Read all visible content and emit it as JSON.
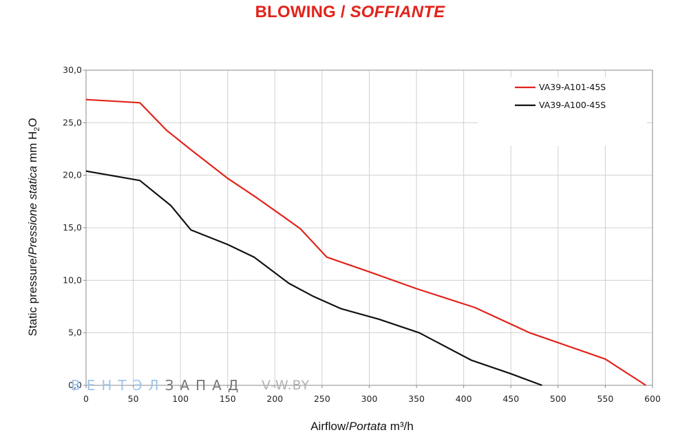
{
  "title": {
    "main": "BLOWING",
    "separator": " / ",
    "italic": "SOFFIANTE",
    "color": "#e2231a"
  },
  "watermark": {
    "left_part1": "ВЕНТЭЛ",
    "left_part2": "ЗАПАД",
    "right": "V-W.BY",
    "color1": "#9fc4e8",
    "color2": "#777777",
    "color3": "#b0b0b0"
  },
  "chart_data": {
    "type": "line",
    "xlabel": {
      "plain": "Airflow",
      "slash": "/",
      "italic": "Portata",
      "unit": "m³/h"
    },
    "ylabel": {
      "plain": "Static pressure",
      "slash": "/",
      "italic": "Pressione statica",
      "unit": "mm H",
      "sub": "2",
      "unit_end": "O"
    },
    "xlim": [
      0,
      600
    ],
    "ylim": [
      0,
      30
    ],
    "x_ticks": [
      0,
      50,
      100,
      150,
      200,
      250,
      300,
      350,
      400,
      450,
      500,
      550,
      600
    ],
    "x_tick_labels": [
      "0",
      "50",
      "100",
      "150",
      "200",
      "250",
      "300",
      "350",
      "400",
      "450",
      "500",
      "550",
      "600"
    ],
    "y_ticks": [
      0,
      5,
      10,
      15,
      20,
      25,
      30
    ],
    "y_tick_labels": [
      "0,0",
      "5,0",
      "10,0",
      "15,0",
      "20,0",
      "25,0",
      "30,0"
    ],
    "grid": true,
    "legend_position": "top-right",
    "series": [
      {
        "name": "VA39-A101-45S",
        "color": "#e2231a",
        "x": [
          0,
          57,
          85,
          110,
          150,
          180,
          210,
          227,
          255,
          300,
          350,
          412,
          470,
          550,
          593
        ],
        "y": [
          27.2,
          26.9,
          24.3,
          22.5,
          19.7,
          17.9,
          16.0,
          14.9,
          12.2,
          10.8,
          9.2,
          7.4,
          5.0,
          2.5,
          0
        ]
      },
      {
        "name": "VA39-A100-45S",
        "color": "#111111",
        "x": [
          0,
          57,
          90,
          111,
          150,
          178,
          215,
          240,
          270,
          310,
          353,
          408,
          450,
          483
        ],
        "y": [
          20.4,
          19.5,
          17.1,
          14.8,
          13.4,
          12.2,
          9.7,
          8.5,
          7.3,
          6.3,
          5.0,
          2.4,
          1.1,
          0
        ]
      }
    ]
  }
}
